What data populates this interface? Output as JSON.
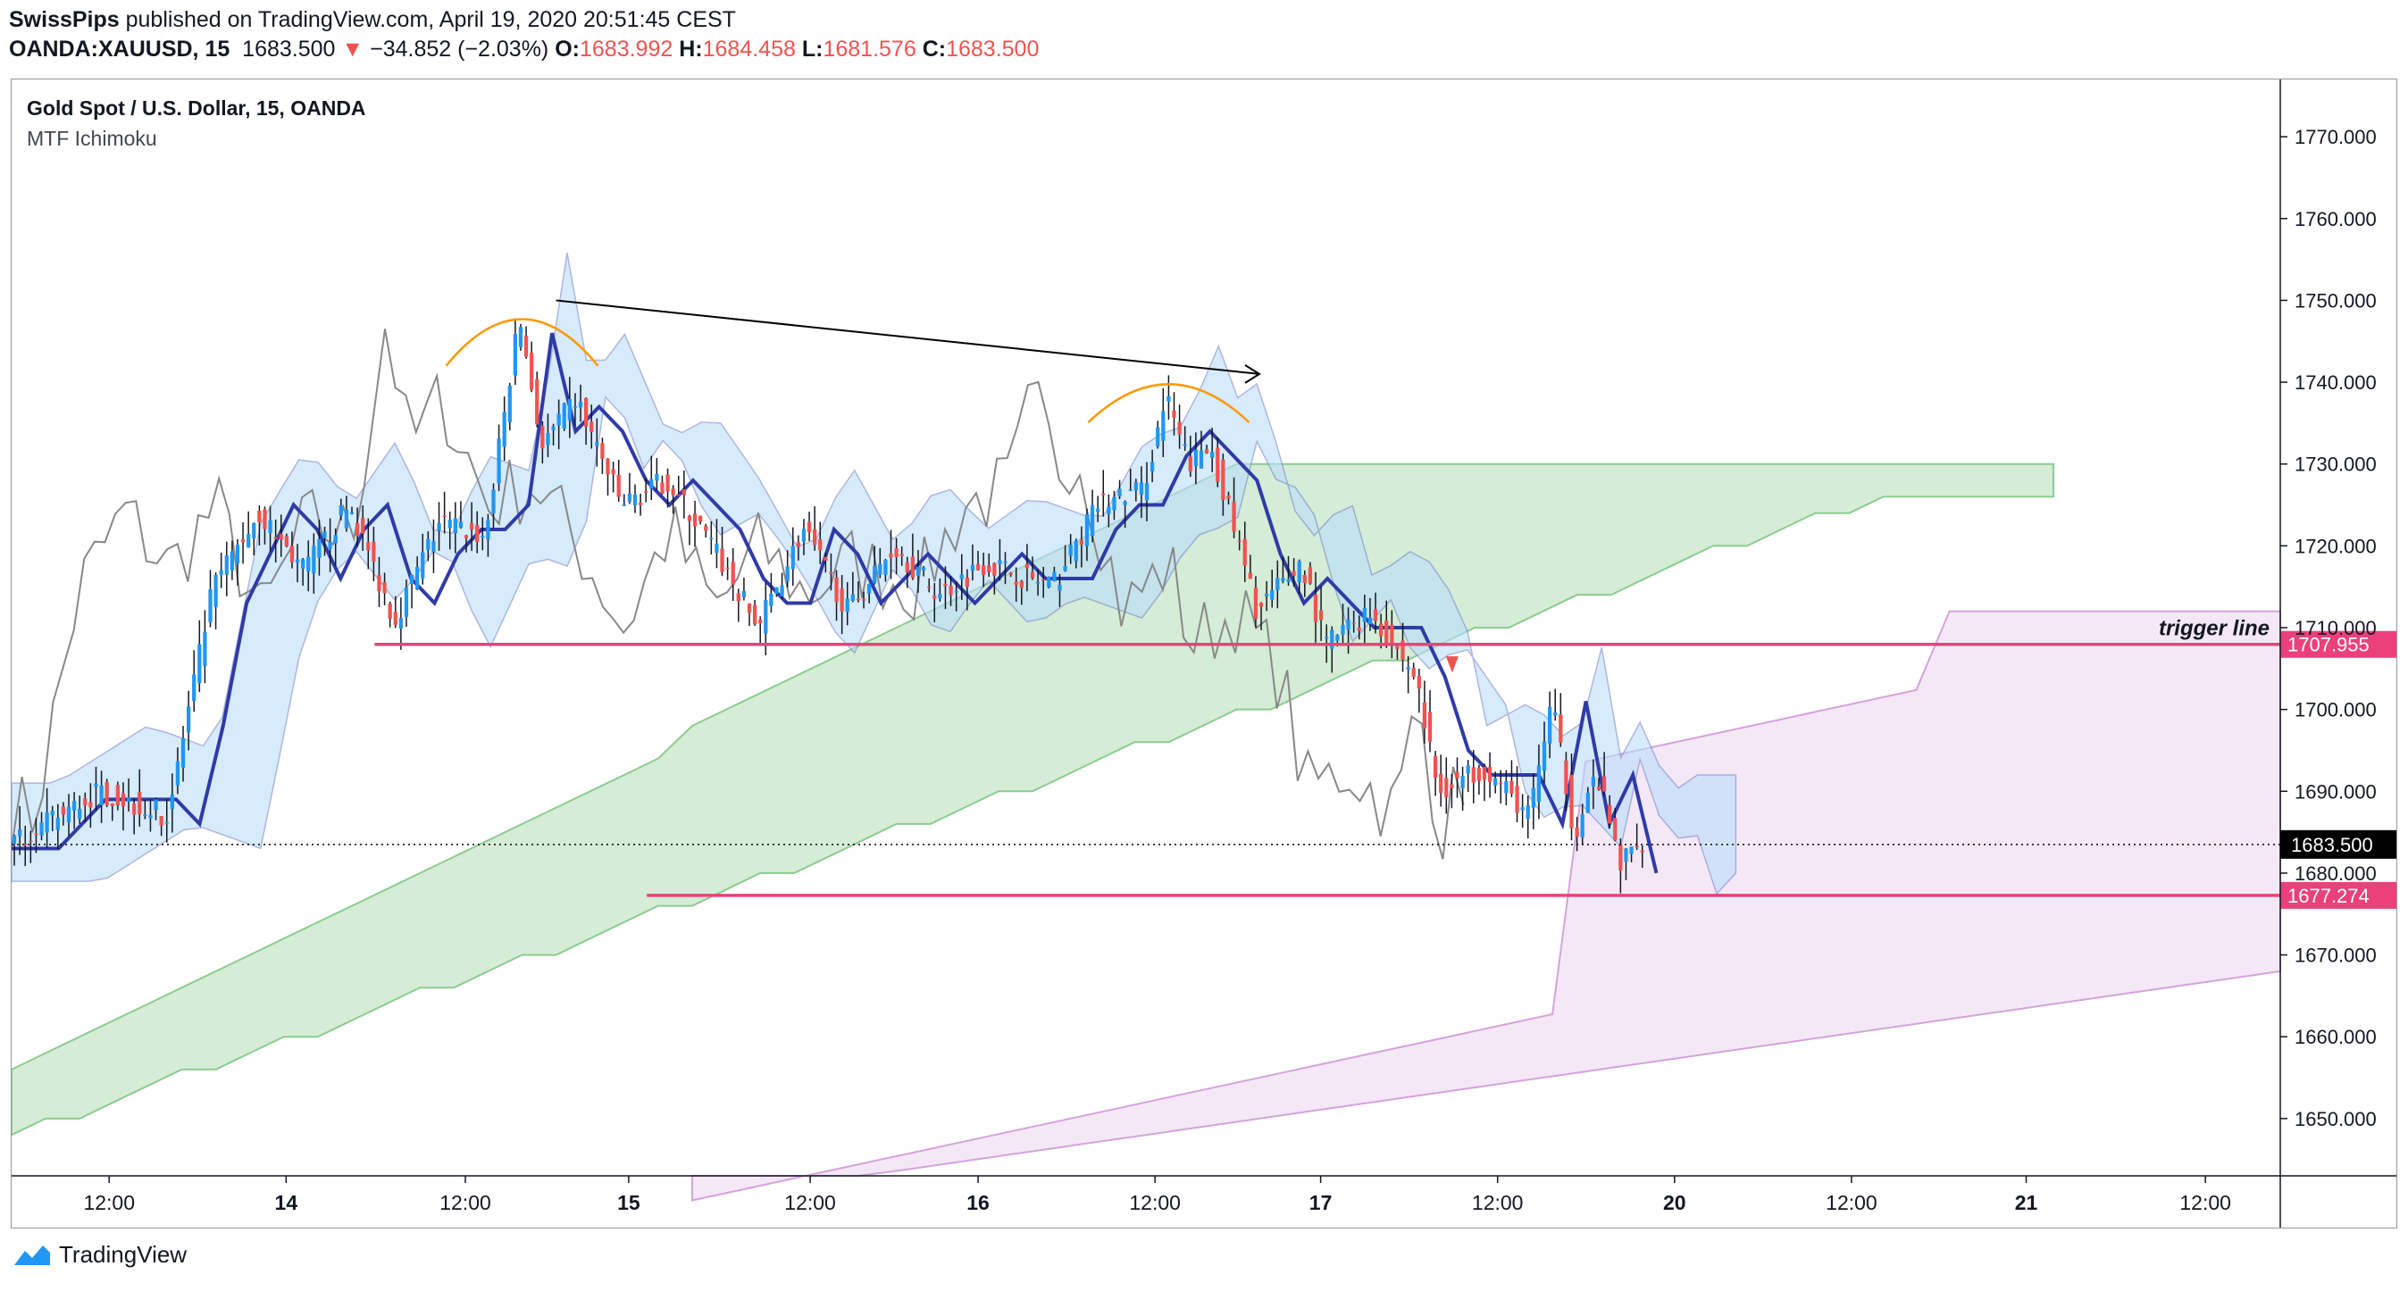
{
  "header": {
    "publisher": "SwissPips",
    "published_text": "published on TradingView.com, April 19, 2020 20:51:45 CEST",
    "symbol": "OANDA:XAUUSD, 15",
    "last": "1683.500",
    "change": "−34.852 (−2.03%)",
    "open_label": "O:",
    "open": "1683.992",
    "high_label": "H:",
    "high": "1684.458",
    "low_label": "L:",
    "low": "1681.576",
    "close_label": "C:",
    "close": "1683.500"
  },
  "legend": {
    "title": "Gold Spot / U.S. Dollar, 15, OANDA",
    "indicator": "MTF Ichimoku"
  },
  "footer": {
    "brand": "TradingView"
  },
  "colors": {
    "up": "#2196f3",
    "down": "#ef5350",
    "wick": "#131722",
    "kijun": "#2f3ba8",
    "chikou": "#888888",
    "cloud_blue": "#bbdefb",
    "cloud_green": "#c8e6c9",
    "cloud_violet": "#f3e5f5",
    "level": "#ec407a",
    "arc": "#ff9800"
  },
  "chart_data": {
    "type": "candlestick",
    "symbol": "XAUUSD",
    "timeframe": "15",
    "ylim": [
      1643,
      1777
    ],
    "y_ticks": [
      1650,
      1660,
      1670,
      1680,
      1690,
      1700,
      1710,
      1720,
      1730,
      1740,
      1750,
      1760,
      1770
    ],
    "y_tick_labels": [
      "1650.000",
      "1660.000",
      "1670.000",
      "1680.000",
      "1690.000",
      "1700.000",
      "1710.000",
      "1720.000",
      "1730.000",
      "1740.000",
      "1750.000",
      "1760.000",
      "1770.000"
    ],
    "x_ticks": [
      "12:00",
      "14",
      "12:00",
      "15",
      "12:00",
      "16",
      "12:00",
      "17",
      "12:00",
      "20",
      "12:00",
      "21",
      "12:00"
    ],
    "last_price": 1683.5,
    "last_price_label": "1683.500",
    "levels": [
      {
        "value": 1707.955,
        "label": "1707.955",
        "text": "trigger line"
      },
      {
        "value": 1677.274,
        "label": "1677.274",
        "text": ""
      }
    ],
    "price_path": [
      [
        0,
        1683
      ],
      [
        0.04,
        1690
      ],
      [
        0.07,
        1687
      ],
      [
        0.09,
        1715
      ],
      [
        0.11,
        1724
      ],
      [
        0.13,
        1717
      ],
      [
        0.15,
        1725
      ],
      [
        0.17,
        1711
      ],
      [
        0.19,
        1723
      ],
      [
        0.21,
        1721
      ],
      [
        0.225,
        1748
      ],
      [
        0.235,
        1732
      ],
      [
        0.25,
        1738
      ],
      [
        0.27,
        1725
      ],
      [
        0.29,
        1728
      ],
      [
        0.31,
        1720
      ],
      [
        0.33,
        1710
      ],
      [
        0.35,
        1722
      ],
      [
        0.37,
        1712
      ],
      [
        0.39,
        1720
      ],
      [
        0.41,
        1714
      ],
      [
        0.43,
        1718
      ],
      [
        0.46,
        1715
      ],
      [
        0.48,
        1725
      ],
      [
        0.5,
        1727
      ],
      [
        0.51,
        1738
      ],
      [
        0.52,
        1730
      ],
      [
        0.53,
        1732
      ],
      [
        0.55,
        1712
      ],
      [
        0.57,
        1718
      ],
      [
        0.58,
        1708
      ],
      [
        0.6,
        1712
      ],
      [
        0.62,
        1704
      ],
      [
        0.63,
        1690
      ],
      [
        0.65,
        1693
      ],
      [
        0.67,
        1687
      ],
      [
        0.68,
        1701
      ],
      [
        0.69,
        1685
      ],
      [
        0.7,
        1692
      ],
      [
        0.71,
        1681
      ],
      [
        0.72,
        1684
      ]
    ]
  }
}
